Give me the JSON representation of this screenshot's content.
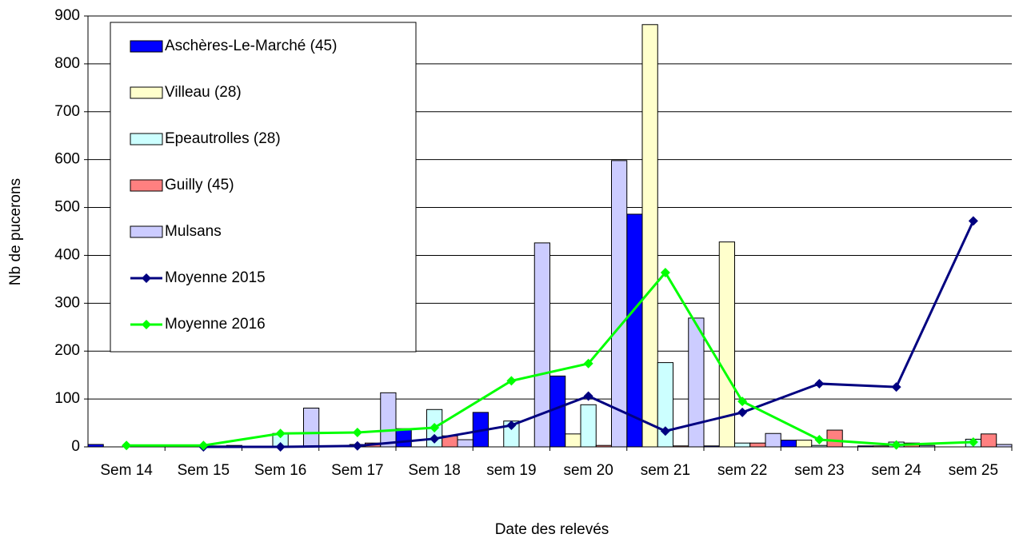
{
  "chart_data": {
    "type": "bar",
    "categories": [
      "Sem 14",
      "Sem 15",
      "Sem 16",
      "Sem 17",
      "Sem 18",
      "sem 19",
      "sem 20",
      "sem 21",
      "sem 22",
      "sem 23",
      "sem 24",
      "sem 25"
    ],
    "series": [
      {
        "name": "Aschères-Le-Marché (45)",
        "type": "bar",
        "color": "#0000ff",
        "values": [
          5,
          0,
          0,
          0,
          38,
          72,
          148,
          486,
          2,
          14,
          2,
          0
        ]
      },
      {
        "name": "Villeau (28)",
        "type": "bar",
        "color": "#ffffcc",
        "values": [
          0,
          3,
          0,
          0,
          0,
          0,
          27,
          882,
          428,
          14,
          2,
          0
        ]
      },
      {
        "name": "Epeautrolles (28)",
        "type": "bar",
        "color": "#ccffff",
        "values": [
          0,
          0,
          28,
          5,
          78,
          54,
          88,
          176,
          8,
          3,
          10,
          16
        ]
      },
      {
        "name": "Guilly (45)",
        "type": "bar",
        "color": "#ff8080",
        "values": [
          0,
          2,
          0,
          8,
          23,
          0,
          3,
          2,
          8,
          35,
          8,
          27
        ]
      },
      {
        "name": "Mulsans",
        "type": "bar",
        "color": "#ccccff",
        "values": [
          0,
          3,
          81,
          113,
          15,
          426,
          598,
          269,
          28,
          0,
          3,
          5
        ]
      },
      {
        "name": "Moyenne 2015",
        "type": "line",
        "color": "#000080",
        "values": [
          null,
          0,
          0,
          2,
          17,
          45,
          106,
          33,
          72,
          132,
          125,
          472
        ]
      },
      {
        "name": "Moyenne 2016",
        "type": "line",
        "color": "#00ff00",
        "values": [
          3,
          3,
          28,
          30,
          40,
          138,
          174,
          364,
          95,
          15,
          4,
          10
        ]
      }
    ],
    "x_label": "Date des relevés",
    "y_label": "Nb de pucerons",
    "ylim": [
      0,
      900
    ],
    "yticks": [
      0,
      100,
      200,
      300,
      400,
      500,
      600,
      700,
      800,
      900
    ],
    "grid": true
  }
}
